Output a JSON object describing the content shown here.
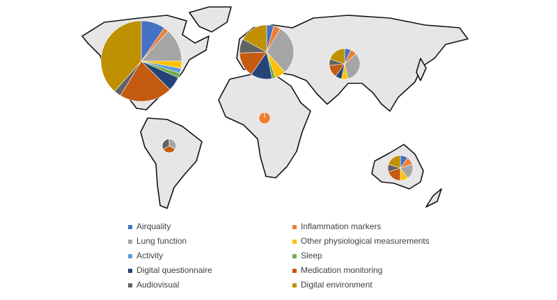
{
  "chart_data": {
    "type": "pie",
    "series": [
      {
        "name": "Airquality",
        "color": "#4472c4",
        "values": [
          10,
          2,
          1,
          0,
          0,
          1
        ]
      },
      {
        "name": "Inflammation markers",
        "color": "#ed7d31",
        "values": [
          2,
          2,
          1,
          2,
          0,
          1
        ]
      },
      {
        "name": "Lung function",
        "color": "#a5a5a5",
        "values": [
          14,
          14,
          5,
          0,
          1,
          2
        ]
      },
      {
        "name": "Other physiological measurements",
        "color": "#ffc000",
        "values": [
          3,
          3,
          1,
          0,
          0,
          1
        ]
      },
      {
        "name": "Activity",
        "color": "#5b9bd5",
        "values": [
          2,
          0,
          0,
          0,
          0,
          0
        ]
      },
      {
        "name": "Sleep",
        "color": "#70ad47",
        "values": [
          2,
          1,
          0,
          0,
          0,
          0
        ]
      },
      {
        "name": "Digital questionnaire",
        "color": "#264478",
        "values": [
          6,
          6,
          1,
          0,
          0,
          0
        ]
      },
      {
        "name": "Medication monitoring",
        "color": "#c55a11",
        "values": [
          22,
          7,
          2,
          0,
          1,
          2
        ]
      },
      {
        "name": "Audiovisual",
        "color": "#636363",
        "values": [
          3,
          4,
          1,
          0,
          1,
          1
        ]
      },
      {
        "name": "Digital environment",
        "color": "#bf9000",
        "values": [
          40,
          8,
          3,
          0,
          0,
          2
        ]
      }
    ]
  }
}
